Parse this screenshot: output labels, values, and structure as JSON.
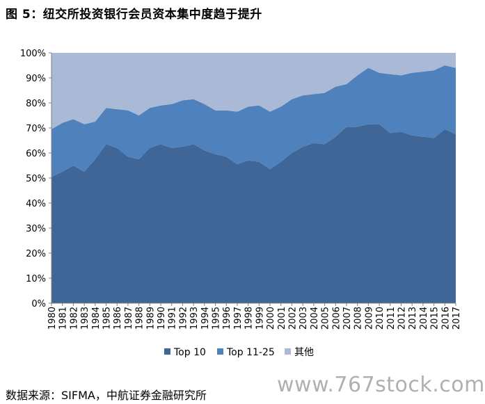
{
  "figure": {
    "title": "图 5：纽交所投资银行会员资本集中度趋于提升",
    "source": "数据来源：SIFMA，中航证券金融研究所",
    "watermark": "www.767stock.com"
  },
  "chart_data": {
    "type": "area",
    "stacked": true,
    "categories": [
      "1980",
      "1981",
      "1982",
      "1983",
      "1984",
      "1985",
      "1986",
      "1987",
      "1988",
      "1989",
      "1990",
      "1991",
      "1992",
      "1993",
      "1994",
      "1995",
      "1996",
      "1997",
      "1998",
      "1999",
      "2000",
      "2001",
      "2002",
      "2003",
      "2004",
      "2005",
      "2006",
      "2007",
      "2008",
      "2009",
      "2010",
      "2011",
      "2012",
      "2013",
      "2014",
      "2015",
      "2016",
      "2017"
    ],
    "series": [
      {
        "name": "Top 10",
        "color": "#3f6696",
        "values": [
          50.5,
          52.5,
          55,
          52.5,
          57.5,
          63.5,
          62,
          58.5,
          57.5,
          62,
          63.5,
          62,
          62.5,
          63.5,
          61,
          59.5,
          58.5,
          55.5,
          57,
          56.5,
          53.5,
          56.5,
          60,
          62.5,
          64,
          63.5,
          66.5,
          70.5,
          70.5,
          71.5,
          71.5,
          68,
          68.5,
          67,
          66.5,
          66,
          69.5,
          67.5
        ]
      },
      {
        "name": "Top 11-25",
        "color": "#4f81bd",
        "values": [
          19,
          19.5,
          18.5,
          19,
          15,
          14.5,
          15.5,
          18.5,
          17.5,
          16,
          15.5,
          17.5,
          18.5,
          18,
          18.5,
          17.5,
          18.5,
          21,
          21.5,
          22.5,
          23,
          22,
          21.5,
          20.5,
          19.5,
          20.5,
          20,
          17,
          20.5,
          22.5,
          20.5,
          23.5,
          22.5,
          25,
          26,
          27,
          25.5,
          26.5
        ]
      },
      {
        "name": "其他",
        "color": "#a9b9d6",
        "values": [
          30.5,
          28,
          26.5,
          28.5,
          27.5,
          22,
          22.5,
          23,
          25,
          22,
          21,
          20.5,
          19,
          18.5,
          20.5,
          23,
          23,
          23.5,
          21.5,
          21,
          23.5,
          21.5,
          18.5,
          17,
          16.5,
          16,
          13.5,
          12.5,
          9,
          6,
          8,
          8.5,
          9,
          8,
          7.5,
          7,
          5,
          6
        ]
      }
    ],
    "ylim": [
      0,
      100
    ],
    "y_ticks": [
      "0%",
      "10%",
      "20%",
      "30%",
      "40%",
      "50%",
      "60%",
      "70%",
      "80%",
      "90%",
      "100%"
    ],
    "legend_position": "bottom",
    "grid": false
  }
}
